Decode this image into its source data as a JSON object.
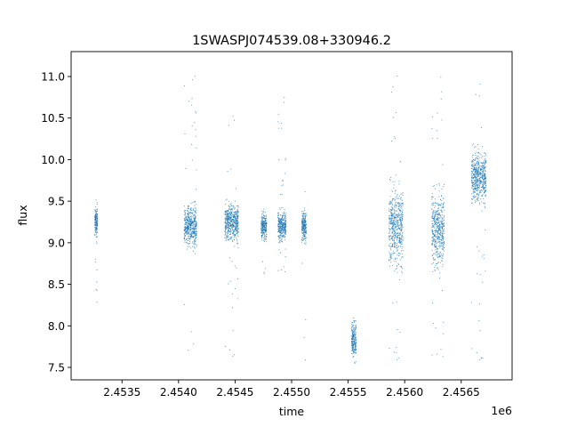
{
  "chart_data": {
    "type": "scatter",
    "title": "1SWASPJ074539.08+330946.2",
    "xlabel": "time",
    "ylabel": "flux",
    "x_offset_label": "1e6",
    "xlim": [
      2453050,
      2456950
    ],
    "ylim": [
      7.35,
      11.3
    ],
    "x_ticks": [
      2453500,
      2454000,
      2454500,
      2455000,
      2455500,
      2456000,
      2456500
    ],
    "x_tick_labels": [
      "2.4535",
      "2.4540",
      "2.4545",
      "2.4550",
      "2.4555",
      "2.4560",
      "2.4565"
    ],
    "y_ticks": [
      7.5,
      8.0,
      8.5,
      9.0,
      9.5,
      10.0,
      10.5,
      11.0
    ],
    "y_tick_labels": [
      "7.5",
      "8.0",
      "8.5",
      "9.0",
      "9.5",
      "10.0",
      "10.5",
      "11.0"
    ],
    "grid": false,
    "point_color": "#1f77b4",
    "observing_seasons": [
      {
        "x_range": [
          2453260,
          2453285
        ],
        "y_center": 9.25,
        "y_spread": 0.12,
        "y_min": 8.25,
        "y_max": 9.62
      },
      {
        "x_range": [
          2454050,
          2454160
        ],
        "y_center": 9.2,
        "y_spread": 0.16,
        "y_min": 7.65,
        "y_max": 11.05
      },
      {
        "x_range": [
          2454410,
          2454530
        ],
        "y_center": 9.25,
        "y_spread": 0.14,
        "y_min": 7.6,
        "y_max": 10.6
      },
      {
        "x_range": [
          2454730,
          2454780
        ],
        "y_center": 9.2,
        "y_spread": 0.1,
        "y_min": 8.6,
        "y_max": 9.45
      },
      {
        "x_range": [
          2454880,
          2454950
        ],
        "y_center": 9.2,
        "y_spread": 0.12,
        "y_min": 8.6,
        "y_max": 10.9
      },
      {
        "x_range": [
          2455090,
          2455130
        ],
        "y_center": 9.2,
        "y_spread": 0.12,
        "y_min": 7.55,
        "y_max": 9.65
      },
      {
        "x_range": [
          2455530,
          2455570
        ],
        "y_center": 7.85,
        "y_spread": 0.15,
        "y_min": 7.55,
        "y_max": 8.1
      },
      {
        "x_range": [
          2455860,
          2455985
        ],
        "y_center": 9.2,
        "y_spread": 0.3,
        "y_min": 7.55,
        "y_max": 11.1
      },
      {
        "x_range": [
          2456240,
          2456350
        ],
        "y_center": 9.15,
        "y_spread": 0.3,
        "y_min": 7.55,
        "y_max": 11.05
      },
      {
        "x_range": [
          2456590,
          2456720
        ],
        "y_center": 9.8,
        "y_spread": 0.2,
        "y_min": 7.55,
        "y_max": 11.0
      }
    ]
  }
}
